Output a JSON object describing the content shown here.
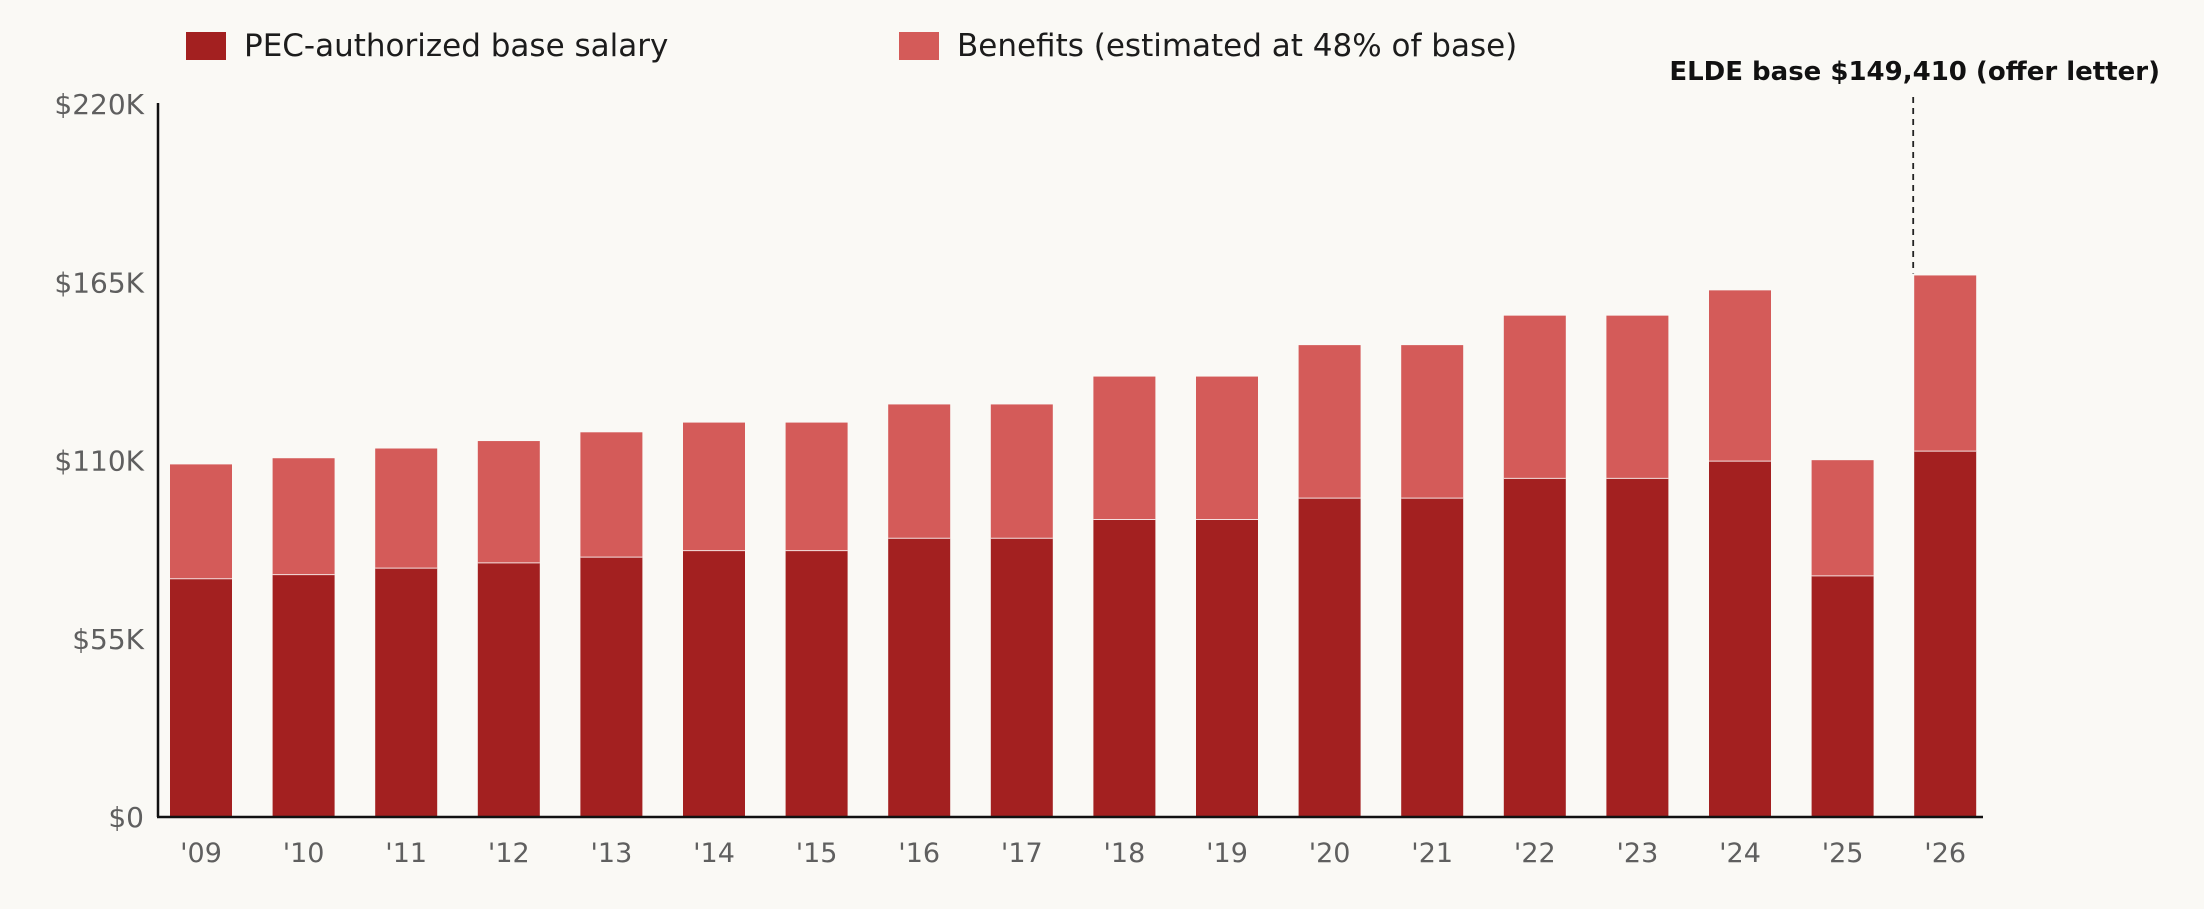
{
  "legend": {
    "base_label": "PEC-authorized base salary",
    "benefits_label": "Benefits (estimated at 48% of base)"
  },
  "colors": {
    "base": "#a32020",
    "benefits": "#d45b59",
    "background": "#faf9f5"
  },
  "chart_data": {
    "type": "bar",
    "stacked": true,
    "title": "",
    "xlabel": "",
    "ylabel": "",
    "categories": [
      "'09",
      "'10",
      "'11",
      "'12",
      "'13",
      "'14",
      "'15",
      "'16",
      "'17",
      "'18",
      "'19",
      "'20",
      "'21",
      "'22",
      "'23",
      "'24",
      "'25",
      "'26"
    ],
    "series": [
      {
        "name": "PEC-authorized base salary",
        "values": [
          73500,
          74800,
          76800,
          78400,
          80200,
          82200,
          82200,
          86000,
          86000,
          91800,
          91800,
          98400,
          98400,
          104500,
          104500,
          109800,
          74400,
          112900
        ]
      },
      {
        "name": "Benefits (estimated at 48% of base)",
        "values": [
          35300,
          35900,
          36900,
          37600,
          38500,
          39500,
          39500,
          41300,
          41300,
          44100,
          44100,
          47200,
          47200,
          50200,
          50200,
          52700,
          35700,
          54200
        ]
      }
    ],
    "ylim": [
      0,
      220000
    ],
    "yticks": [
      0,
      55000,
      110000,
      165000,
      220000
    ],
    "ytick_labels": [
      "$0",
      "$55K",
      "$110K",
      "$165K",
      "$220K"
    ],
    "grid": false,
    "legend_position": "top",
    "annotation": {
      "text": "ELDE base $149,410 (offer letter)",
      "category": "'26"
    }
  }
}
